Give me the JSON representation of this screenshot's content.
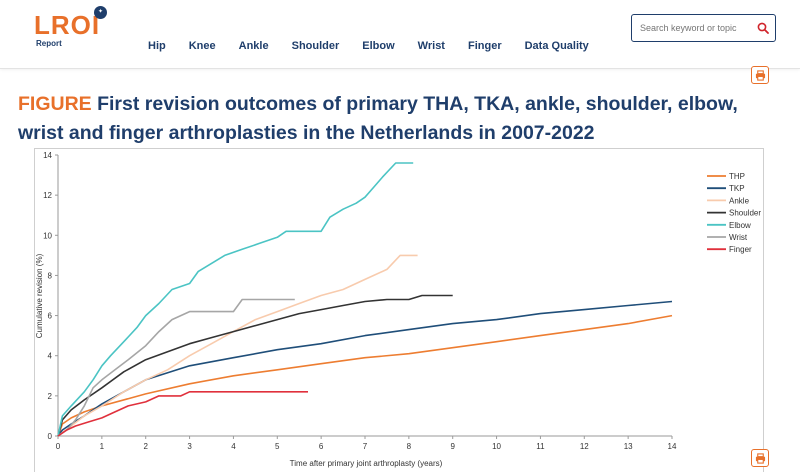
{
  "header": {
    "logo_text": "LROI",
    "logo_sub": "Report",
    "nav": [
      "Hip",
      "Knee",
      "Ankle",
      "Shoulder",
      "Elbow",
      "Wrist",
      "Finger",
      "Data Quality"
    ],
    "search_placeholder": "Search keyword or topic"
  },
  "icons": {
    "search": "search-icon",
    "print": "print-icon"
  },
  "colors": {
    "brand_orange": "#e8702a",
    "brand_navy": "#1f3e6b"
  },
  "figure": {
    "keyword": "FIGURE",
    "title": "First revision outcomes of primary THA, TKA, ankle, shoulder, elbow, wrist and finger arthroplasties in the Netherlands in 2007-2022"
  },
  "chart_data": {
    "type": "line",
    "xlabel": "Time after primary joint arthroplasty (years)",
    "ylabel": "Cumulative revision (%)",
    "xlim": [
      0,
      14
    ],
    "ylim": [
      0,
      14
    ],
    "xticks": [
      "0",
      "1",
      "2",
      "3",
      "4",
      "5",
      "6",
      "7",
      "8",
      "9",
      "10",
      "11",
      "12",
      "13",
      "14"
    ],
    "yticks": [
      "0",
      "2",
      "4",
      "6",
      "8",
      "10",
      "12",
      "14"
    ],
    "grid": false,
    "legend_position": "right",
    "series": [
      {
        "name": "THP",
        "color": "#ed7d31",
        "x": [
          0,
          0.1,
          0.3,
          0.6,
          1,
          2,
          3,
          4,
          5,
          6,
          7,
          8,
          9,
          10,
          11,
          12,
          13,
          14
        ],
        "y": [
          0,
          0.6,
          0.9,
          1.2,
          1.5,
          2.1,
          2.6,
          3.0,
          3.3,
          3.6,
          3.9,
          4.1,
          4.4,
          4.7,
          5.0,
          5.3,
          5.6,
          6.0
        ]
      },
      {
        "name": "TKP",
        "color": "#1f4e79",
        "x": [
          0,
          0.1,
          0.3,
          0.6,
          1,
          1.5,
          2,
          3,
          4,
          5,
          6,
          7,
          8,
          9,
          10,
          11,
          12,
          13,
          14
        ],
        "y": [
          0,
          0.3,
          0.6,
          1.0,
          1.6,
          2.2,
          2.8,
          3.5,
          3.9,
          4.3,
          4.6,
          5.0,
          5.3,
          5.6,
          5.8,
          6.1,
          6.3,
          6.5,
          6.7
        ]
      },
      {
        "name": "Ankle",
        "color": "#f8cbad",
        "x": [
          0,
          0.3,
          0.6,
          1,
          1.5,
          2,
          2.5,
          3,
          3.5,
          4,
          4.5,
          5,
          5.5,
          6,
          6.5,
          7,
          7.5,
          7.8,
          8.2
        ],
        "y": [
          0,
          0.5,
          1.0,
          1.5,
          2.2,
          2.8,
          3.3,
          4.0,
          4.6,
          5.2,
          5.8,
          6.2,
          6.6,
          7.0,
          7.3,
          7.8,
          8.3,
          9.0,
          9.0
        ]
      },
      {
        "name": "Shoulder",
        "color": "#333333",
        "x": [
          0,
          0.1,
          0.3,
          0.6,
          1,
          1.5,
          2,
          2.5,
          3,
          3.5,
          4,
          4.5,
          5,
          5.5,
          6,
          6.5,
          7,
          7.5,
          8,
          8.3,
          9
        ],
        "y": [
          0,
          0.8,
          1.3,
          1.8,
          2.4,
          3.2,
          3.8,
          4.2,
          4.6,
          4.9,
          5.2,
          5.5,
          5.8,
          6.1,
          6.3,
          6.5,
          6.7,
          6.8,
          6.8,
          7.0,
          7.0
        ]
      },
      {
        "name": "Elbow",
        "color": "#4bc4c4",
        "x": [
          0,
          0.1,
          0.3,
          0.6,
          0.8,
          1,
          1.2,
          1.5,
          1.8,
          2,
          2.3,
          2.6,
          3,
          3.2,
          3.5,
          3.8,
          4.2,
          4.6,
          5,
          5.2,
          6,
          6.2,
          6.5,
          6.8,
          7,
          7.2,
          7.4,
          7.7,
          8.1
        ],
        "y": [
          0,
          1.0,
          1.5,
          2.2,
          2.8,
          3.5,
          4.0,
          4.7,
          5.4,
          6.0,
          6.6,
          7.3,
          7.6,
          8.2,
          8.6,
          9.0,
          9.3,
          9.6,
          9.9,
          10.2,
          10.2,
          10.9,
          11.3,
          11.6,
          11.9,
          12.4,
          12.9,
          13.6,
          13.6
        ]
      },
      {
        "name": "Wrist",
        "color": "#a6a6a6",
        "x": [
          0,
          0.2,
          0.4,
          0.6,
          0.8,
          1,
          1.3,
          1.6,
          2,
          2.3,
          2.6,
          3,
          3.5,
          4,
          4.2,
          5,
          5.4
        ],
        "y": [
          0,
          0.3,
          0.8,
          1.5,
          2.4,
          2.8,
          3.3,
          3.8,
          4.5,
          5.2,
          5.8,
          6.2,
          6.2,
          6.2,
          6.8,
          6.8,
          6.8
        ]
      },
      {
        "name": "Finger",
        "color": "#e0303c",
        "x": [
          0,
          0.2,
          0.4,
          0.7,
          1,
          1.3,
          1.6,
          2,
          2.3,
          2.8,
          3,
          3.5,
          4,
          4.5,
          5,
          5.7
        ],
        "y": [
          0,
          0.3,
          0.5,
          0.7,
          0.9,
          1.2,
          1.5,
          1.7,
          2.0,
          2.0,
          2.2,
          2.2,
          2.2,
          2.2,
          2.2,
          2.2
        ]
      }
    ]
  }
}
